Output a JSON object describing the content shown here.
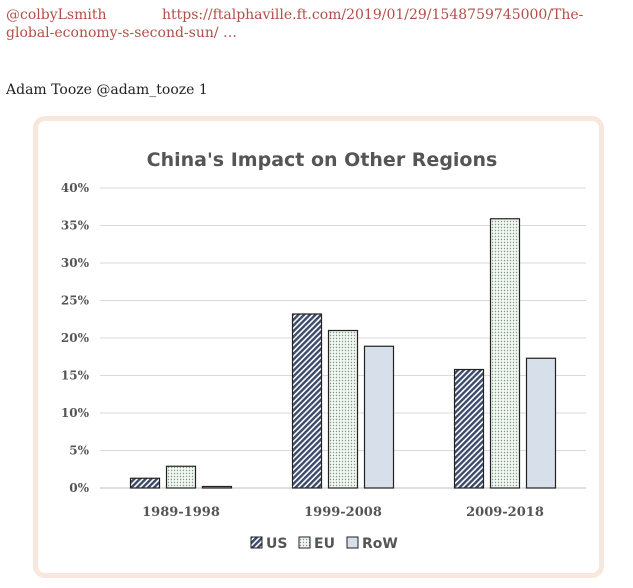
{
  "tweet": {
    "handle": "@colbyLsmith",
    "link": "https://ftalphaville.ft.com/2019/01/29/1548759745000/The-global-economy-s-second-sun/ …",
    "author_line": "Adam Tooze @adam_tooze 1"
  },
  "colors": {
    "link": "#b24f46",
    "card_border": "#f7e7dc",
    "gridline": "#d9d9d9",
    "text": "#555555",
    "us_fill": "#3b4a6b",
    "eu_fill": "#e6efe6",
    "row_fill": "#d6dfea"
  },
  "chart_data": {
    "type": "bar",
    "title": "China's Impact on Other Regions",
    "categories": [
      "1989-1998",
      "1999-2008",
      "2009-2018"
    ],
    "series": [
      {
        "name": "US",
        "values": [
          1.3,
          23.2,
          15.8
        ],
        "pattern": "hatch"
      },
      {
        "name": "EU",
        "values": [
          2.9,
          21.0,
          35.9
        ],
        "pattern": "dots"
      },
      {
        "name": "RoW",
        "values": [
          0.2,
          18.9,
          17.3
        ],
        "pattern": "solid"
      }
    ],
    "yticks": [
      "0%",
      "5%",
      "10%",
      "15%",
      "20%",
      "25%",
      "30%",
      "35%",
      "40%"
    ],
    "ylim": [
      0,
      40
    ],
    "grid": true,
    "legend_position": "bottom",
    "xlabel": "",
    "ylabel": ""
  }
}
